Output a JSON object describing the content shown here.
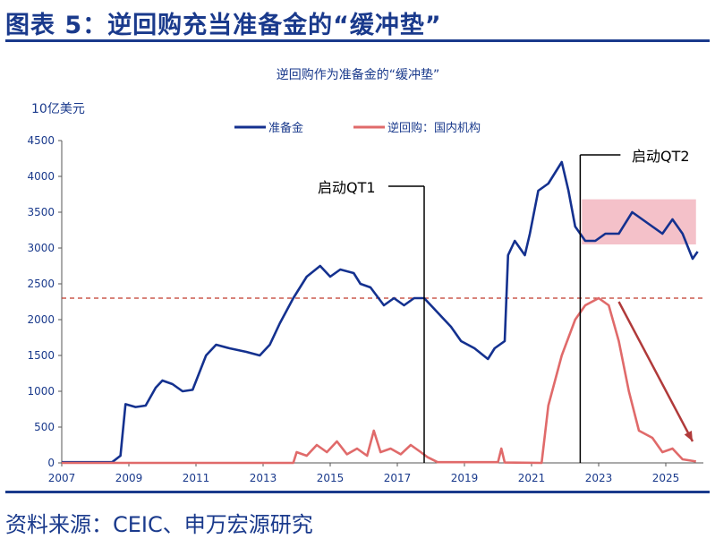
{
  "header": {
    "title": "图表 5：逆回购充当准备金的“缓冲垫”"
  },
  "footer": {
    "source": "资料来源：CEIC、申万宏源研究"
  },
  "colors": {
    "reserves": "#14318f",
    "rrp": "#e06a6a",
    "brand": "#1a3a8c",
    "highlight": "#f2b6c0"
  },
  "chart_data": {
    "type": "line",
    "title": "逆回购作为准备金的“缓冲垫”",
    "ylabel": "10亿美元",
    "xlabel": "",
    "ylim": [
      0,
      4500
    ],
    "xlim": [
      2007,
      2026.1
    ],
    "yticks": [
      "0",
      "500",
      "1000",
      "1500",
      "2000",
      "2500",
      "3000",
      "3500",
      "4000",
      "4500"
    ],
    "xticks": [
      "2007",
      "2009",
      "2011",
      "2013",
      "2015",
      "2017",
      "2019",
      "2021",
      "2023",
      "2025"
    ],
    "legend_position": "top-center",
    "series": [
      {
        "name": "准备金",
        "points": [
          [
            2007,
            10
          ],
          [
            2008.5,
            10
          ],
          [
            2008.75,
            100
          ],
          [
            2008.9,
            820
          ],
          [
            2009.2,
            780
          ],
          [
            2009.5,
            800
          ],
          [
            2009.8,
            1050
          ],
          [
            2010,
            1150
          ],
          [
            2010.3,
            1100
          ],
          [
            2010.6,
            1000
          ],
          [
            2010.9,
            1020
          ],
          [
            2011.3,
            1500
          ],
          [
            2011.6,
            1650
          ],
          [
            2012,
            1600
          ],
          [
            2012.5,
            1550
          ],
          [
            2012.9,
            1500
          ],
          [
            2013.2,
            1650
          ],
          [
            2013.5,
            1950
          ],
          [
            2013.9,
            2300
          ],
          [
            2014.3,
            2600
          ],
          [
            2014.7,
            2750
          ],
          [
            2015,
            2600
          ],
          [
            2015.3,
            2700
          ],
          [
            2015.7,
            2650
          ],
          [
            2015.9,
            2500
          ],
          [
            2016.2,
            2450
          ],
          [
            2016.6,
            2200
          ],
          [
            2016.9,
            2300
          ],
          [
            2017.2,
            2200
          ],
          [
            2017.5,
            2300
          ],
          [
            2017.8,
            2300
          ],
          [
            2018.2,
            2100
          ],
          [
            2018.6,
            1900
          ],
          [
            2018.9,
            1700
          ],
          [
            2019.3,
            1600
          ],
          [
            2019.7,
            1450
          ],
          [
            2019.9,
            1600
          ],
          [
            2020.2,
            1700
          ],
          [
            2020.3,
            2900
          ],
          [
            2020.5,
            3100
          ],
          [
            2020.8,
            2900
          ],
          [
            2020.95,
            3200
          ],
          [
            2021.2,
            3800
          ],
          [
            2021.5,
            3900
          ],
          [
            2021.9,
            4200
          ],
          [
            2022.1,
            3800
          ],
          [
            2022.3,
            3300
          ],
          [
            2022.6,
            3100
          ],
          [
            2022.9,
            3100
          ],
          [
            2023.2,
            3200
          ],
          [
            2023.6,
            3200
          ],
          [
            2024,
            3500
          ],
          [
            2024.3,
            3400
          ],
          [
            2024.6,
            3300
          ],
          [
            2024.9,
            3200
          ],
          [
            2025.2,
            3400
          ],
          [
            2025.5,
            3200
          ],
          [
            2025.8,
            2850
          ],
          [
            2025.95,
            2950
          ]
        ]
      },
      {
        "name": "逆回购：国内机构",
        "points": [
          [
            2007,
            0
          ],
          [
            2013.9,
            0
          ],
          [
            2014,
            150
          ],
          [
            2014.3,
            100
          ],
          [
            2014.6,
            250
          ],
          [
            2014.9,
            150
          ],
          [
            2015.2,
            300
          ],
          [
            2015.5,
            120
          ],
          [
            2015.8,
            200
          ],
          [
            2016.1,
            100
          ],
          [
            2016.3,
            450
          ],
          [
            2016.5,
            150
          ],
          [
            2016.8,
            200
          ],
          [
            2017.1,
            120
          ],
          [
            2017.4,
            250
          ],
          [
            2017.7,
            150
          ],
          [
            2017.9,
            80
          ],
          [
            2018.2,
            10
          ],
          [
            2020,
            10
          ],
          [
            2020.1,
            200
          ],
          [
            2020.2,
            5
          ],
          [
            2021.3,
            0
          ],
          [
            2021.5,
            800
          ],
          [
            2021.9,
            1500
          ],
          [
            2022.3,
            2000
          ],
          [
            2022.6,
            2200
          ],
          [
            2023,
            2300
          ],
          [
            2023.3,
            2200
          ],
          [
            2023.6,
            1700
          ],
          [
            2023.9,
            1000
          ],
          [
            2024.2,
            450
          ],
          [
            2024.6,
            350
          ],
          [
            2024.9,
            150
          ],
          [
            2025.2,
            200
          ],
          [
            2025.5,
            50
          ],
          [
            2025.9,
            20
          ]
        ]
      }
    ],
    "annotations": {
      "qt1_label": "启动QT1",
      "qt1_x": 2017.8,
      "qt2_label": "启动QT2",
      "qt2_x": 2022.45,
      "reference_level": 2300,
      "highlight_range": {
        "x": [
          2022.5,
          2025.9
        ],
        "y": [
          3050,
          3680
        ]
      },
      "arrow": {
        "from": [
          2023.6,
          2250
        ],
        "to": [
          2025.8,
          300
        ]
      }
    }
  }
}
